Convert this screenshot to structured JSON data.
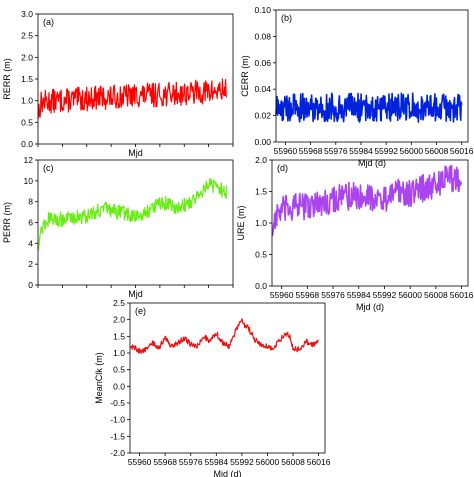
{
  "chart_data": [
    {
      "panel_label": "(a)",
      "type": "line",
      "ylabel": "RERR (m)",
      "xlabel": "Mjd",
      "xlim": [
        55957,
        56018
      ],
      "ylim": [
        0.0,
        3.0
      ],
      "yticks": [
        "0.0",
        "0.5",
        "1.0",
        "1.5",
        "2.0",
        "2.5",
        "3.0"
      ],
      "xticks": [],
      "color": "#ff0000",
      "x": [
        55957,
        55958,
        55960,
        55964,
        55968,
        55972,
        55976,
        55980,
        55984,
        55988,
        55992,
        55996,
        56000,
        56004,
        56008,
        56012,
        56016
      ],
      "y": [
        0.72,
        0.95,
        0.98,
        1.0,
        1.02,
        1.04,
        1.07,
        1.08,
        1.1,
        1.12,
        1.13,
        1.14,
        1.16,
        1.18,
        1.2,
        1.21,
        1.24
      ],
      "band": 0.28
    },
    {
      "panel_label": "(b)",
      "type": "line",
      "ylabel": "CERR (m)",
      "xlabel": "Mjd (d)",
      "xlim": [
        55957,
        56018
      ],
      "ylim": [
        0.0,
        0.1
      ],
      "yticks": [
        "0.00",
        "0.02",
        "0.04",
        "0.06",
        "0.08",
        "0.10"
      ],
      "xticks": [
        "55960",
        "55968",
        "55976",
        "55984",
        "55992",
        "56000",
        "56008",
        "56016"
      ],
      "color": "#0022dd",
      "x": [
        55957,
        55960,
        55964,
        55968,
        55972,
        55976,
        55980,
        55984,
        55988,
        55992,
        55996,
        56000,
        56004,
        56008,
        56012,
        56016
      ],
      "y": [
        0.025,
        0.026,
        0.026,
        0.026,
        0.026,
        0.026,
        0.026,
        0.026,
        0.026,
        0.027,
        0.026,
        0.026,
        0.026,
        0.026,
        0.026,
        0.026
      ],
      "band": 0.011
    },
    {
      "panel_label": "(c)",
      "type": "line",
      "ylabel": "PERR (m)",
      "xlabel": "Mjd",
      "xlim": [
        55957,
        56018
      ],
      "ylim": [
        0,
        12
      ],
      "yticks": [
        "0",
        "2",
        "4",
        "6",
        "8",
        "10",
        "12"
      ],
      "xticks": [],
      "color": "#66ee11",
      "x": [
        55957,
        55958,
        55960,
        55964,
        55968,
        55972,
        55976,
        55978,
        55980,
        55984,
        55988,
        55992,
        55996,
        56000,
        56004,
        56008,
        56010,
        56012,
        56016
      ],
      "y": [
        3.8,
        5.3,
        6.3,
        6.3,
        6.5,
        6.6,
        7.2,
        7.3,
        7.1,
        6.9,
        6.5,
        7.3,
        7.9,
        7.5,
        7.8,
        8.9,
        9.8,
        9.5,
        8.9
      ],
      "band": 0.7
    },
    {
      "panel_label": "(d)",
      "type": "line",
      "ylabel": "URE (m)",
      "xlabel": "Mjd (d)",
      "xlim": [
        55957,
        56018
      ],
      "ylim": [
        0.0,
        2.0
      ],
      "yticks": [
        "0.0",
        "0.5",
        "1.0",
        "1.5",
        "2.0"
      ],
      "xticks": [
        "55960",
        "55968",
        "55976",
        "55984",
        "55992",
        "56000",
        "56008",
        "56016"
      ],
      "color": "#aa44ee",
      "x": [
        55957,
        55958,
        55960,
        55964,
        55968,
        55972,
        55976,
        55980,
        55984,
        55988,
        55992,
        55996,
        56000,
        56004,
        56008,
        56012,
        56016
      ],
      "y": [
        0.85,
        1.1,
        1.2,
        1.25,
        1.28,
        1.3,
        1.38,
        1.42,
        1.44,
        1.42,
        1.36,
        1.5,
        1.48,
        1.55,
        1.6,
        1.72,
        1.68
      ],
      "band": 0.22
    },
    {
      "panel_label": "(e)",
      "type": "line",
      "ylabel": "MeanClk (m)",
      "xlabel": "Mjd (d)",
      "xlim": [
        55957,
        56018
      ],
      "ylim": [
        -2.0,
        2.5
      ],
      "yticks": [
        "-2.0",
        "-1.5",
        "-1.0",
        "-0.5",
        "0.0",
        "0.5",
        "1.0",
        "1.5",
        "2.0",
        "2.5"
      ],
      "xticks": [
        "55960",
        "55968",
        "55976",
        "55984",
        "55992",
        "56000",
        "56008",
        "56016"
      ],
      "color": "#ee1111",
      "x": [
        55957,
        55958,
        55960,
        55962,
        55964,
        55966,
        55968,
        55970,
        55972,
        55974,
        55976,
        55978,
        55980,
        55982,
        55984,
        55985,
        55986,
        55988,
        55990,
        55992,
        55993,
        55994,
        55996,
        55998,
        56000,
        56002,
        56004,
        56006,
        56007,
        56008,
        56010,
        56012,
        56014,
        56016
      ],
      "y": [
        1.15,
        1.2,
        1.05,
        1.1,
        1.3,
        1.15,
        1.45,
        1.2,
        1.3,
        1.45,
        1.25,
        1.2,
        1.5,
        1.35,
        1.6,
        1.45,
        1.3,
        1.2,
        1.65,
        2.05,
        1.8,
        1.75,
        1.4,
        1.25,
        1.2,
        1.15,
        1.4,
        1.6,
        1.5,
        1.15,
        1.1,
        1.35,
        1.25,
        1.35
      ],
      "band": 0.08
    }
  ]
}
